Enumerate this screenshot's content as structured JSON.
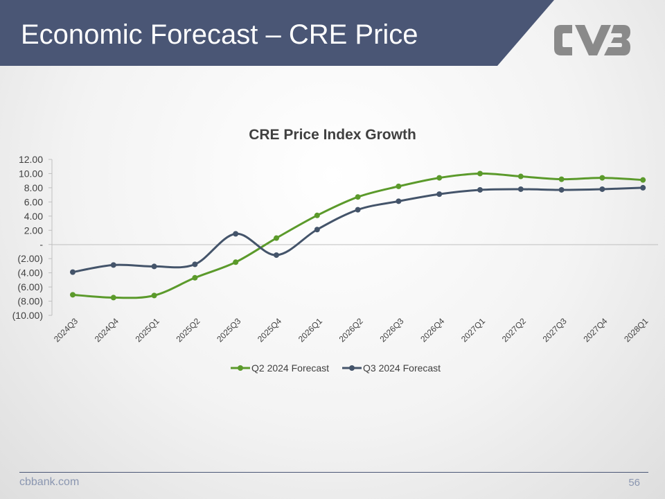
{
  "slide": {
    "title": "Economic Forecast – CRE Price",
    "footer_url": "cbbank.com",
    "page_number": "56",
    "logo_text": "CVB"
  },
  "colors": {
    "header_band": "#4a5675",
    "logo": "#8a8a8a",
    "axis": "#bfbfbf",
    "text": "#404040"
  },
  "chart_data": {
    "type": "line",
    "title": "CRE Price Index Growth",
    "xlabel": "",
    "ylabel": "",
    "ylim": [
      -10,
      12
    ],
    "y_ticks": [
      {
        "value": 12,
        "label": "12.00"
      },
      {
        "value": 10,
        "label": "10.00"
      },
      {
        "value": 8,
        "label": "8.00"
      },
      {
        "value": 6,
        "label": "6.00"
      },
      {
        "value": 4,
        "label": "4.00"
      },
      {
        "value": 2,
        "label": "2.00"
      },
      {
        "value": 0,
        "label": "-"
      },
      {
        "value": -2,
        "label": "(2.00)"
      },
      {
        "value": -4,
        "label": "(4.00)"
      },
      {
        "value": -6,
        "label": "(6.00)"
      },
      {
        "value": -8,
        "label": "(8.00)"
      },
      {
        "value": -10,
        "label": "(10.00)"
      }
    ],
    "categories": [
      "2024Q3",
      "2024Q4",
      "2025Q1",
      "2025Q2",
      "2025Q3",
      "2025Q4",
      "2026Q1",
      "2026Q2",
      "2026Q3",
      "2026Q4",
      "2027Q1",
      "2027Q2",
      "2027Q3",
      "2027Q4",
      "2028Q1"
    ],
    "series": [
      {
        "name": "Q2 2024 Forecast",
        "color": "#5b9a2b",
        "values": [
          -7.1,
          -7.5,
          -7.2,
          -4.7,
          -2.5,
          0.9,
          4.1,
          6.7,
          8.2,
          9.4,
          10.0,
          9.6,
          9.2,
          9.4,
          9.1
        ]
      },
      {
        "name": "Q3 2024 Forecast",
        "color": "#44546a",
        "values": [
          -3.9,
          -2.9,
          -3.1,
          -2.8,
          1.5,
          -1.5,
          2.1,
          4.9,
          6.1,
          7.1,
          7.7,
          7.8,
          7.7,
          7.8,
          8.0
        ]
      }
    ],
    "grid": false,
    "legend_position": "bottom"
  }
}
